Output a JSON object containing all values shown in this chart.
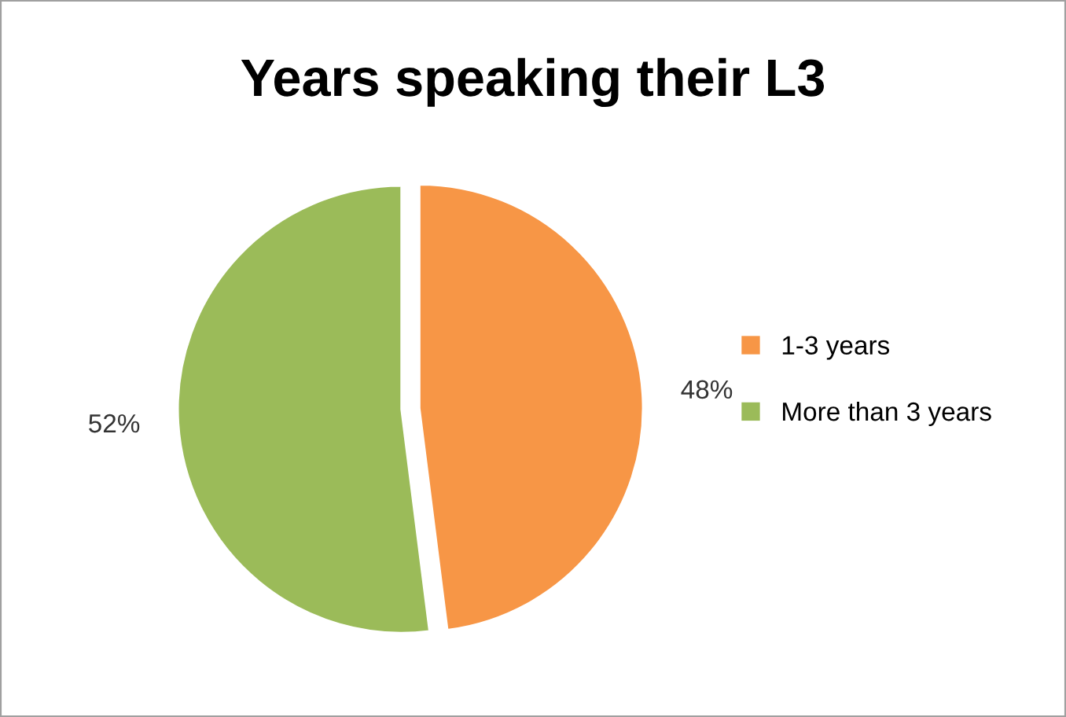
{
  "chart_data": {
    "type": "pie",
    "title": "Years speaking their L3",
    "categories": [
      "1-3 years",
      "More than 3 years"
    ],
    "values": [
      48,
      52
    ],
    "colors": [
      "#f79646",
      "#9bbb59"
    ],
    "value_labels": [
      "48%",
      "52%"
    ],
    "legend": "right"
  }
}
